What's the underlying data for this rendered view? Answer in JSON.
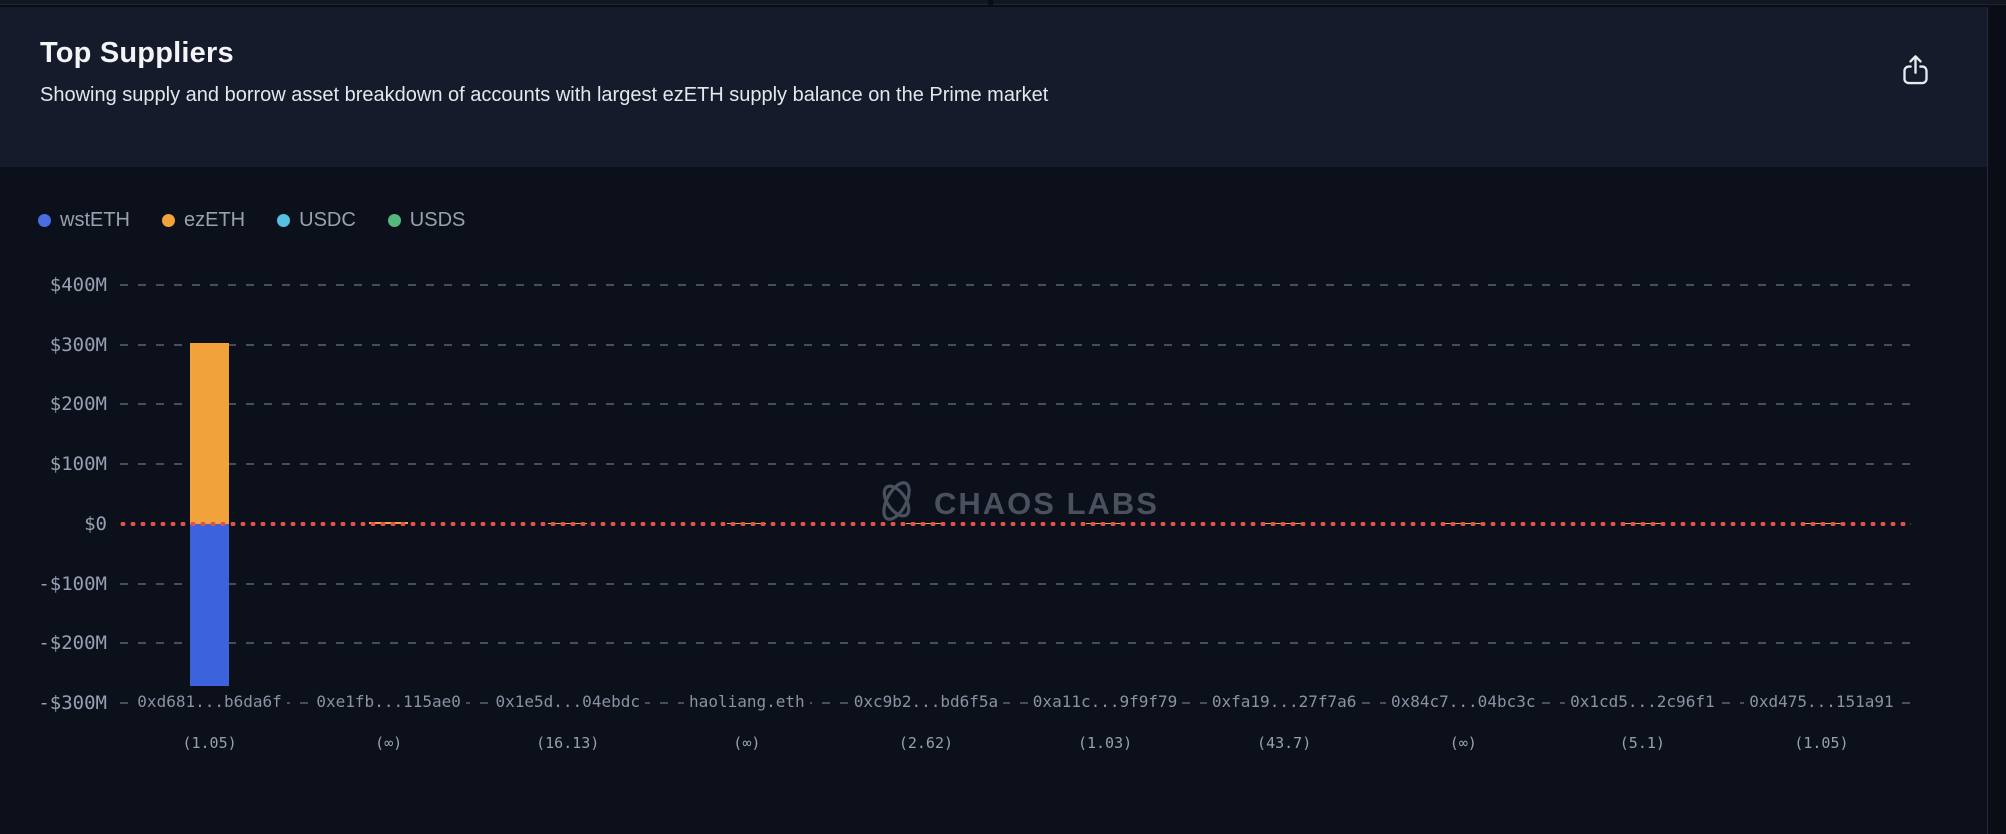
{
  "header": {
    "title": "Top Suppliers",
    "subtitle": "Showing supply and borrow asset breakdown of accounts with largest ezETH supply balance on the Prime market"
  },
  "legend": [
    {
      "label": "wstETH",
      "color": "#4A6EE0"
    },
    {
      "label": "ezETH",
      "color": "#F2A23B"
    },
    {
      "label": "USDC",
      "color": "#54C0E2"
    },
    {
      "label": "USDS",
      "color": "#55B87E"
    }
  ],
  "watermark": {
    "text": "CHAOS LABS"
  },
  "colors": {
    "background": "#0C101B",
    "header_background": "#151B2B",
    "gridline": "#454D5F",
    "zero_line": "#DF5247",
    "axis_text": "#96A0B2"
  },
  "chart_data": {
    "type": "bar",
    "stacked": true,
    "title": "Top Suppliers",
    "unit": "$M",
    "categories": [
      "0xd681...b6da6f",
      "0xe1fb...115ae0",
      "0x1e5d...04ebdc",
      "haoliang.eth",
      "0xc9b2...bd6f5a",
      "0xa11c...9f9f79",
      "0xfa19...27f7a6",
      "0x84c7...04bc3c",
      "0x1cd5...2c96f1",
      "0xd475...151a91"
    ],
    "category_sublabels": [
      "(1.05)",
      "(∞)",
      "(16.13)",
      "(∞)",
      "(2.62)",
      "(1.03)",
      "(43.7)",
      "(∞)",
      "(5.1)",
      "(1.05)"
    ],
    "series": [
      {
        "name": "ezETH",
        "color": "#F2A23B",
        "values": [
          303,
          3,
          2,
          2,
          1,
          1,
          1,
          1,
          1,
          1
        ]
      },
      {
        "name": "wstETH",
        "color": "#3D63DC",
        "values": [
          -271,
          0,
          0,
          0,
          0,
          0,
          0,
          0,
          0,
          0
        ]
      },
      {
        "name": "USDC",
        "color": "#54C0E2",
        "values": [
          0,
          0,
          0,
          0,
          0,
          0,
          0,
          0,
          0,
          0
        ]
      },
      {
        "name": "USDS",
        "color": "#55B87E",
        "values": [
          0,
          0,
          0,
          0,
          0,
          0,
          0,
          0,
          0,
          0
        ]
      }
    ],
    "yticks": [
      "$400M",
      "$300M",
      "$200M",
      "$100M",
      "$0",
      "-$100M",
      "-$200M",
      "-$300M"
    ],
    "ytick_values": [
      400,
      300,
      200,
      100,
      0,
      -100,
      -200,
      -300
    ],
    "ylim": [
      -300,
      400
    ],
    "grid": true,
    "zero_line": true,
    "legend_position": "top-left"
  }
}
